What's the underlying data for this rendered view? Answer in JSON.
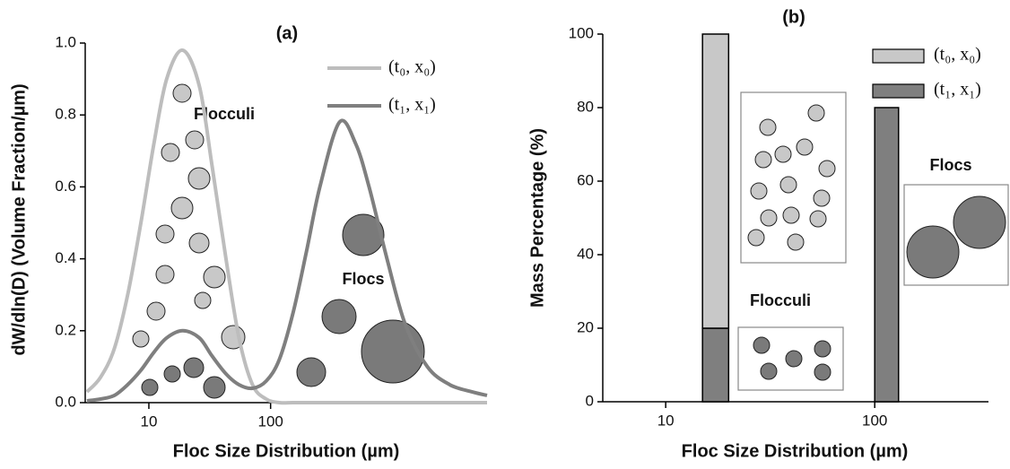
{
  "chart_data": [
    {
      "type": "line",
      "title": "(a)",
      "x_label": "Floc Size Distribution (µm)",
      "y_label": "dW/dln(D) (Volume Fraction/µm)",
      "xscale": "log",
      "xlim": [
        3,
        6000
      ],
      "xticks": [
        10,
        100
      ],
      "ylim": [
        0,
        1
      ],
      "yticks": [
        {
          "value": 0,
          "label": "0.0"
        },
        0.2,
        0.4,
        0.6,
        0.8,
        {
          "value": 1,
          "label": "1.0"
        }
      ],
      "x": [
        3.1,
        4,
        5.2,
        6.7,
        8.6,
        11,
        14,
        19,
        26,
        33,
        43,
        55,
        71,
        92,
        118,
        153,
        197,
        254,
        368,
        500,
        644,
        904,
        1270,
        1940,
        2960,
        4510,
        6000
      ],
      "series": [
        {
          "name": "(t₀, x₀)",
          "color": "#bdbdbd",
          "values": [
            0.03,
            0.07,
            0.15,
            0.3,
            0.5,
            0.72,
            0.9,
            0.98,
            0.88,
            0.66,
            0.4,
            0.18,
            0.05,
            0.01,
            0,
            0,
            0,
            0,
            0,
            0,
            0,
            0,
            0,
            0,
            0,
            0,
            0
          ]
        },
        {
          "name": "(t₁, x₁)",
          "color": "#7f7f7f",
          "values": [
            0.005,
            0.01,
            0.02,
            0.05,
            0.09,
            0.14,
            0.18,
            0.2,
            0.18,
            0.13,
            0.08,
            0.05,
            0.04,
            0.06,
            0.12,
            0.25,
            0.42,
            0.6,
            0.78,
            0.72,
            0.6,
            0.4,
            0.22,
            0.1,
            0.05,
            0.03,
            0.02
          ]
        }
      ],
      "annotations": [
        "Flocculi",
        "Flocs"
      ],
      "legend": "upper right"
    },
    {
      "type": "bar",
      "title": "(b)",
      "stacked": true,
      "x_label": "Floc Size Distribution (µm)",
      "y_label": "Mass Percentage (%)",
      "xscale": "log",
      "xlim": [
        5,
        350
      ],
      "xticks": [
        10,
        100
      ],
      "ylim": [
        0,
        100
      ],
      "yticks": [
        0,
        20,
        40,
        60,
        80,
        100
      ],
      "bar_edges": [
        [
          15,
          20
        ],
        [
          100,
          130
        ]
      ],
      "series": [
        {
          "name": "(t₀, x₀)",
          "color": "#c8c8c8",
          "values": [
            80,
            0
          ]
        },
        {
          "name": "(t₁, x₁)",
          "color": "#7f7f7f",
          "values": [
            20,
            80
          ]
        }
      ],
      "annotations": [
        "Flocs",
        "Flocculi"
      ],
      "legend": "upper right"
    }
  ]
}
